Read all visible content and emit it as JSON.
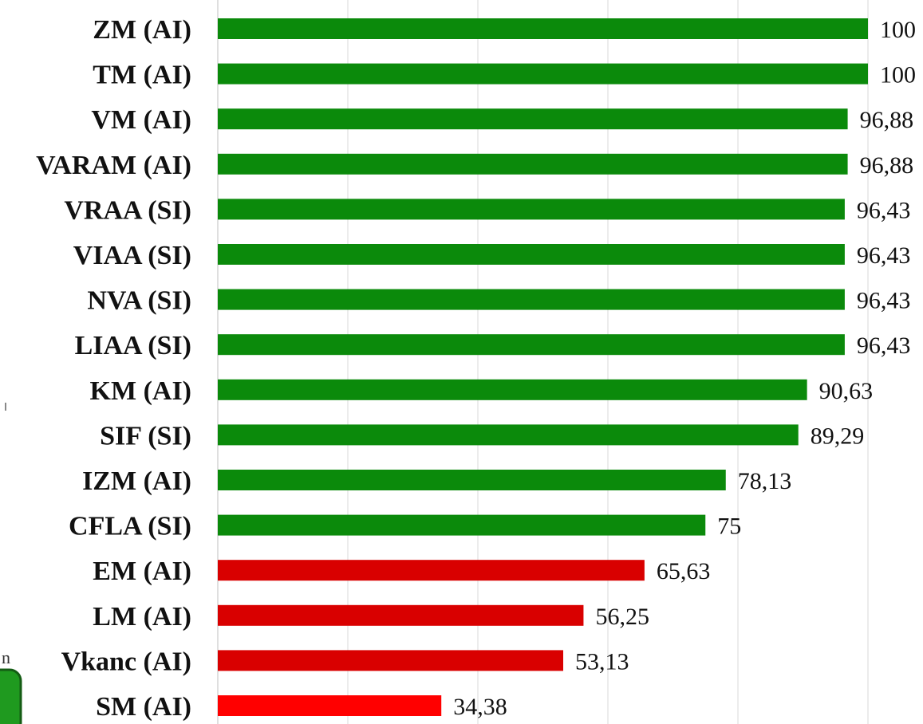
{
  "chart_data": {
    "type": "bar",
    "orientation": "horizontal",
    "title": "",
    "xlabel": "",
    "ylabel": "",
    "xlim": [
      0,
      100
    ],
    "grid": true,
    "legend": "none",
    "categories": [
      "ZM (AI)",
      "TM (AI)",
      "VM (AI)",
      "VARAM (AI)",
      "VRAA (SI)",
      "VIAA (SI)",
      "NVA (SI)",
      "LIAA (SI)",
      "KM (AI)",
      "SIF (SI)",
      "IZM (AI)",
      "CFLA (SI)",
      "EM (AI)",
      "LM (AI)",
      "Vkanc (AI)",
      "SM (AI)"
    ],
    "values": [
      100,
      100,
      96.88,
      96.88,
      96.43,
      96.43,
      96.43,
      96.43,
      90.63,
      89.29,
      78.13,
      75,
      65.63,
      56.25,
      53.13,
      34.38
    ],
    "value_labels": [
      "100",
      "100",
      "96,88",
      "96,88",
      "96,43",
      "96,43",
      "96,43",
      "96,43",
      "90,63",
      "89,29",
      "78,13",
      "75",
      "65,63",
      "56,25",
      "53,13",
      "34,38"
    ],
    "bar_colors": [
      "#0b8a0b",
      "#0b8a0b",
      "#0b8a0b",
      "#0b8a0b",
      "#0b8a0b",
      "#0b8a0b",
      "#0b8a0b",
      "#0b8a0b",
      "#0b8a0b",
      "#0b8a0b",
      "#0b8a0b",
      "#0b8a0b",
      "#d90000",
      "#d90000",
      "#d90000",
      "#ff0000"
    ]
  },
  "stray_glyph": "n"
}
